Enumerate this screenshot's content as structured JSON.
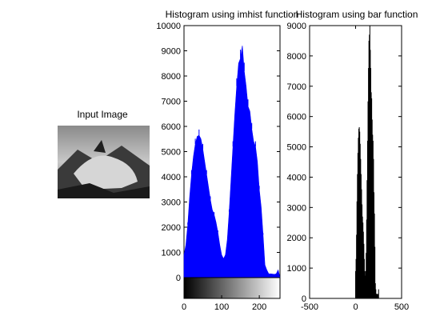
{
  "window": {
    "background": "#ffffff"
  },
  "image_panel": {
    "title": "Input Image",
    "image_description_icon": "grayscale-photo-icon"
  },
  "chart_data": [
    {
      "type": "area",
      "title": "Histogram using  imhist function",
      "xlabel": "",
      "ylabel": "",
      "xlim": [
        0,
        255
      ],
      "ylim": [
        0,
        10000
      ],
      "x_ticks": [
        "0",
        "100",
        "200"
      ],
      "y_ticks": [
        "0",
        "1000",
        "2000",
        "3000",
        "4000",
        "5000",
        "6000",
        "7000",
        "8000",
        "9000",
        "10000"
      ],
      "color": "#0000ff",
      "colorbar": "grayscale gradient 0-255",
      "series": [
        {
          "x": [
            0,
            5,
            10,
            15,
            20,
            25,
            30,
            35,
            40,
            45,
            50,
            55,
            60,
            65,
            70,
            75,
            80,
            85,
            90,
            95,
            100,
            105,
            110,
            115,
            120,
            125,
            130,
            135,
            140,
            145,
            150,
            155,
            160,
            165,
            170,
            175,
            180,
            185,
            190,
            195,
            200,
            205,
            210,
            215,
            220,
            225,
            230,
            235,
            240,
            245,
            250,
            255
          ],
          "values": [
            900,
            1300,
            2100,
            3200,
            4100,
            4800,
            5300,
            5600,
            5650,
            5500,
            5100,
            4600,
            4100,
            3600,
            3100,
            2700,
            2500,
            2200,
            1800,
            1300,
            900,
            750,
            900,
            1500,
            2600,
            3900,
            5200,
            6500,
            7600,
            8500,
            8700,
            9200,
            8200,
            7600,
            6800,
            6600,
            5900,
            5400,
            5200,
            4600,
            3500,
            2800,
            1700,
            500,
            300,
            150,
            150,
            140,
            130,
            150,
            300,
            0
          ]
        }
      ]
    },
    {
      "type": "bar",
      "title": "Histogram using bar function",
      "xlabel": "",
      "ylabel": "",
      "xlim": [
        -500,
        500
      ],
      "ylim": [
        0,
        9000
      ],
      "x_ticks": [
        "-500",
        "0",
        "500"
      ],
      "y_ticks": [
        "0",
        "1000",
        "2000",
        "3000",
        "4000",
        "5000",
        "6000",
        "7000",
        "8000",
        "9000"
      ],
      "color": "#000000",
      "series": [
        {
          "x": [
            0,
            5,
            10,
            15,
            20,
            25,
            30,
            35,
            40,
            45,
            50,
            55,
            60,
            65,
            70,
            75,
            80,
            85,
            90,
            95,
            100,
            105,
            110,
            115,
            120,
            125,
            130,
            135,
            140,
            145,
            150,
            155,
            160,
            165,
            170,
            175,
            180,
            185,
            190,
            195,
            200,
            205,
            210,
            215,
            220,
            225,
            230,
            235,
            240,
            245,
            250,
            255
          ],
          "values": [
            900,
            1300,
            2100,
            3200,
            4100,
            4800,
            5300,
            5600,
            5650,
            5500,
            5100,
            4600,
            4100,
            3600,
            3100,
            2700,
            2500,
            2200,
            1800,
            1300,
            900,
            750,
            900,
            1500,
            2600,
            3900,
            5200,
            6500,
            7600,
            8500,
            8700,
            9200,
            8200,
            7600,
            6800,
            6600,
            5900,
            5400,
            5200,
            4600,
            3500,
            2800,
            1700,
            500,
            300,
            150,
            150,
            140,
            130,
            150,
            300,
            0
          ]
        }
      ]
    }
  ]
}
